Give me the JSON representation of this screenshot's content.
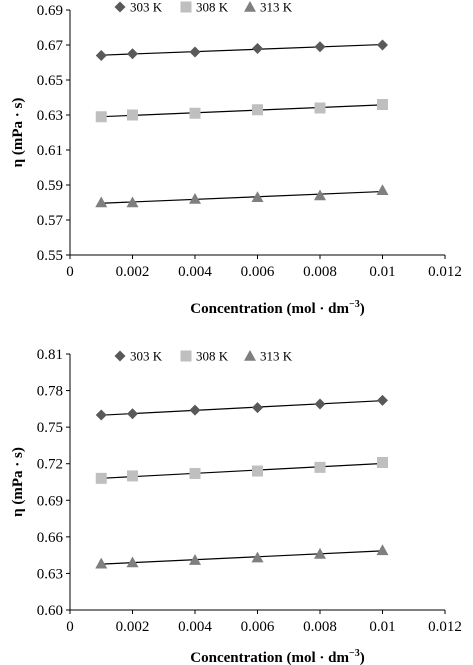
{
  "chart_data": [
    {
      "type": "scatter",
      "title": "",
      "xlabel": "Concentration (mol · dm",
      "xlabel_sup": "−3",
      "xlabel_close": ")",
      "ylabel": "η (mPa · s)",
      "xlim": [
        0,
        0.012
      ],
      "ylim": [
        0.55,
        0.69
      ],
      "x_ticks": [
        "0",
        "0.002",
        "0.004",
        "0.006",
        "0.008",
        "0.01",
        "0.012"
      ],
      "y_ticks": [
        "0.55",
        "0.57",
        "0.59",
        "0.61",
        "0.63",
        "0.65",
        "0.67",
        "0.69"
      ],
      "grid": false,
      "legend_position": "top-left",
      "trendlines": "linear",
      "series": [
        {
          "name": "303 K",
          "marker": "diamond",
          "color": "#595959",
          "x": [
            0.001,
            0.002,
            0.004,
            0.006,
            0.008,
            0.01
          ],
          "y": [
            0.664,
            0.665,
            0.666,
            0.668,
            0.669,
            0.67
          ]
        },
        {
          "name": "308 K",
          "marker": "square",
          "color": "#bfbfbf",
          "x": [
            0.001,
            0.002,
            0.004,
            0.006,
            0.008,
            0.01
          ],
          "y": [
            0.629,
            0.63,
            0.631,
            0.633,
            0.634,
            0.636
          ]
        },
        {
          "name": "313 K",
          "marker": "triangle",
          "color": "#7f7f7f",
          "x": [
            0.001,
            0.002,
            0.004,
            0.006,
            0.008,
            0.01
          ],
          "y": [
            0.58,
            0.58,
            0.582,
            0.583,
            0.584,
            0.587
          ]
        }
      ]
    },
    {
      "type": "scatter",
      "title": "",
      "xlabel": "Concentration (mol · dm",
      "xlabel_sup": "−3",
      "xlabel_close": ")",
      "ylabel": "η (mPa · s)",
      "xlim": [
        0,
        0.012
      ],
      "ylim": [
        0.6,
        0.81
      ],
      "x_ticks": [
        "0",
        "0.002",
        "0.004",
        "0.006",
        "0.008",
        "0.01",
        "0.012"
      ],
      "y_ticks": [
        "0.60",
        "0.63",
        "0.66",
        "0.69",
        "0.72",
        "0.75",
        "0.78",
        "0.81"
      ],
      "grid": false,
      "legend_position": "top-left",
      "trendlines": "linear",
      "series": [
        {
          "name": "303 K",
          "marker": "diamond",
          "color": "#595959",
          "x": [
            0.001,
            0.002,
            0.004,
            0.006,
            0.008,
            0.01
          ],
          "y": [
            0.76,
            0.761,
            0.764,
            0.766,
            0.769,
            0.772
          ]
        },
        {
          "name": "308 K",
          "marker": "square",
          "color": "#bfbfbf",
          "x": [
            0.001,
            0.002,
            0.004,
            0.006,
            0.008,
            0.01
          ],
          "y": [
            0.708,
            0.71,
            0.712,
            0.714,
            0.717,
            0.721
          ]
        },
        {
          "name": "313 K",
          "marker": "triangle",
          "color": "#7f7f7f",
          "x": [
            0.001,
            0.002,
            0.004,
            0.006,
            0.008,
            0.01
          ],
          "y": [
            0.638,
            0.639,
            0.641,
            0.643,
            0.646,
            0.649
          ]
        }
      ]
    }
  ]
}
